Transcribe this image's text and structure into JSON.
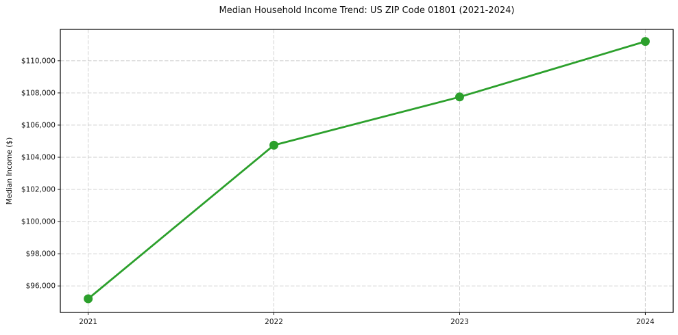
{
  "chart_data": {
    "type": "line",
    "title": "Median Household Income Trend: US ZIP Code 01801 (2021-2024)",
    "ylabel": "Median Income ($)",
    "xlabel": "",
    "categories": [
      "2021",
      "2022",
      "2023",
      "2024"
    ],
    "series": [
      {
        "values": [
          95200,
          104750,
          107750,
          111200
        ],
        "color": "#2ca02c",
        "marker": "circle"
      }
    ],
    "yticks": [
      96000,
      98000,
      100000,
      102000,
      104000,
      106000,
      108000,
      110000
    ],
    "ytick_labels": [
      "$96,000",
      "$98,000",
      "$100,000",
      "$102,000",
      "$104,000",
      "$106,000",
      "$108,000",
      "$110,000"
    ],
    "ylim": [
      94350,
      111950
    ],
    "grid": true,
    "grid_style": "dashed",
    "grid_color": "#cccccc",
    "axis_color": "#000000",
    "text_color": "#111111",
    "legend_position": "none",
    "background": "#ffffff"
  }
}
